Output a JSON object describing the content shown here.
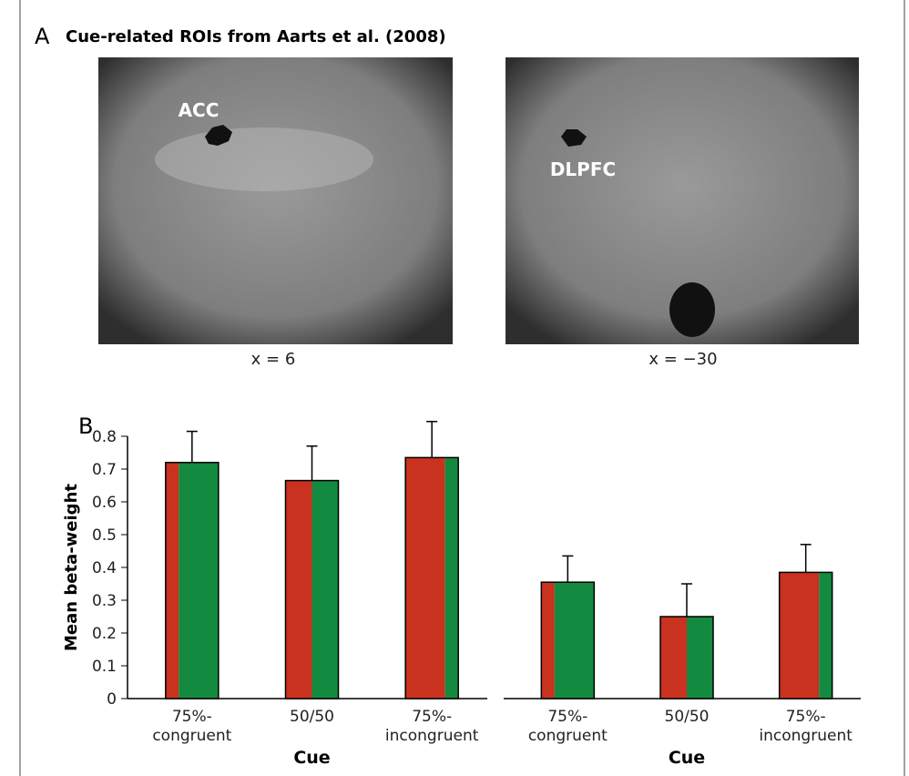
{
  "panel_a": {
    "label": "A",
    "title": "Cue-related ROIs from Aarts et al. (2008)",
    "images": [
      {
        "roi": "ACC",
        "caption": "x = 6"
      },
      {
        "roi": "DLPFC",
        "caption": "x = −30"
      }
    ]
  },
  "panel_b_label": "B",
  "chart_data": [
    {
      "type": "bar",
      "ylabel": "Mean beta-weight",
      "xlabel": "Cue",
      "categories": [
        "75%-congruent",
        "50/50",
        "75%-incongruent"
      ],
      "values": [
        0.72,
        0.665,
        0.735
      ],
      "errors": [
        0.095,
        0.105,
        0.11
      ],
      "congruent_share": [
        75,
        50,
        25
      ],
      "split_colors": [
        "#c8321f",
        "#138a3f"
      ],
      "ylim": [
        0,
        0.8
      ],
      "yticks": [
        0,
        0.1,
        0.2,
        0.3,
        0.4,
        0.5,
        0.6,
        0.7,
        0.8
      ]
    },
    {
      "type": "bar",
      "xlabel": "Cue",
      "categories": [
        "75%-congruent",
        "50/50",
        "75%-incongruent"
      ],
      "values": [
        0.355,
        0.25,
        0.385
      ],
      "errors": [
        0.08,
        0.1,
        0.085
      ],
      "congruent_share": [
        75,
        50,
        25
      ],
      "split_colors": [
        "#c8321f",
        "#138a3f"
      ],
      "ylim": [
        0,
        0.8
      ]
    }
  ]
}
